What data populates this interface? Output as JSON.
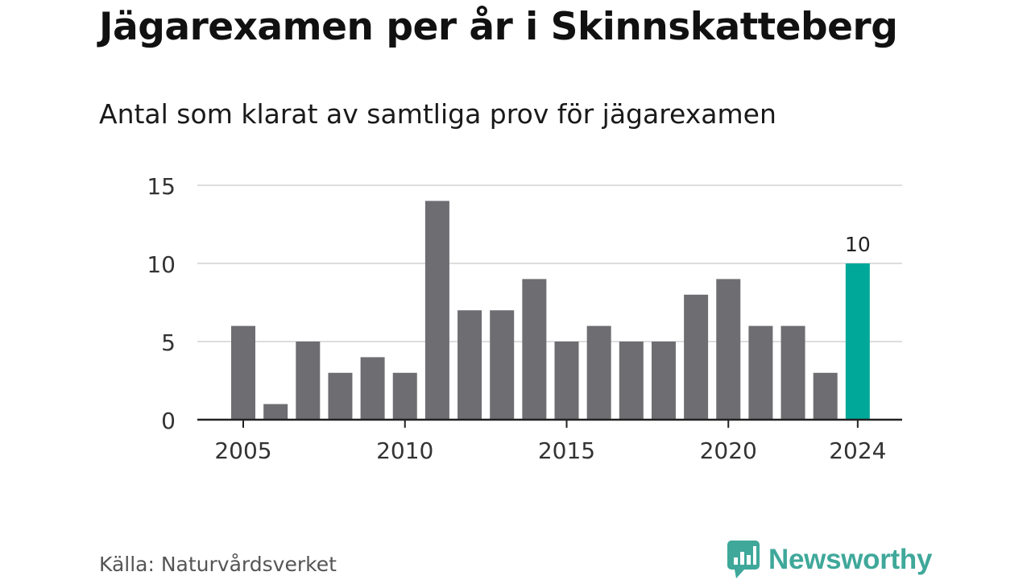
{
  "title": "Jägarexamen per år i Skinnskatteberg",
  "subtitle": "Antal som klarat av samtliga prov för jägarexamen",
  "source": "Källa: Naturvårdsverket",
  "brand": {
    "name": "Newsworthy",
    "icon": "newsworthy-logo-icon",
    "color": "#3fa89a"
  },
  "chart_data": {
    "type": "bar",
    "categories": [
      2005,
      2006,
      2007,
      2008,
      2009,
      2010,
      2011,
      2012,
      2013,
      2014,
      2015,
      2016,
      2017,
      2018,
      2019,
      2020,
      2021,
      2022,
      2023,
      2024
    ],
    "values": [
      6,
      1,
      5,
      3,
      4,
      3,
      14,
      7,
      7,
      9,
      5,
      6,
      5,
      5,
      8,
      9,
      6,
      6,
      3,
      10
    ],
    "x_tick_labels": [
      "2005",
      "2010",
      "2015",
      "2020",
      "2024"
    ],
    "y_tick_labels": [
      "0",
      "5",
      "10",
      "15"
    ],
    "ylim": [
      0,
      15
    ],
    "grid": true,
    "highlight": {
      "category": 2024,
      "label": "10"
    },
    "colors": {
      "bar": "#6e6d72",
      "highlight": "#00a89a",
      "grid": "#dddddd",
      "axis": "#222222"
    }
  }
}
